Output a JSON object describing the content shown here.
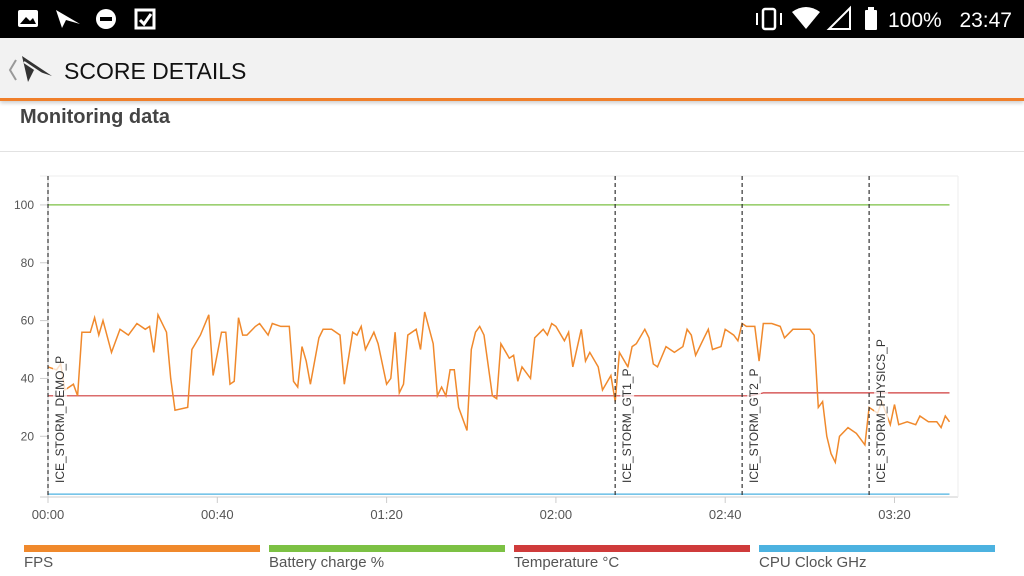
{
  "status_bar": {
    "battery": "100%",
    "time": "23:47"
  },
  "app_bar": {
    "title": "SCORE DETAILS"
  },
  "section": {
    "title": "Monitoring data"
  },
  "chart_data": {
    "type": "line",
    "xlim": [
      0,
      215
    ],
    "xticks": [
      {
        "value": 0,
        "label": "00:00"
      },
      {
        "value": 40,
        "label": "00:40"
      },
      {
        "value": 80,
        "label": "01:20"
      },
      {
        "value": 120,
        "label": "02:00"
      },
      {
        "value": 160,
        "label": "02:40"
      },
      {
        "value": 200,
        "label": "03:20"
      }
    ],
    "ylim": [
      -1,
      110
    ],
    "yticks": [
      20,
      40,
      60,
      80,
      100
    ],
    "markers": [
      {
        "label": "ICE_STORM_DEMO_P",
        "x": 0
      },
      {
        "label": "ICE_STORM_GT1_P",
        "x": 134
      },
      {
        "label": "ICE_STORM_GT2_P",
        "x": 164
      },
      {
        "label": "ICE_STORM_PHYSICS_P",
        "x": 194
      }
    ],
    "series": [
      {
        "name": "FPS",
        "color": "#f0892c",
        "x": [
          0,
          2,
          3,
          4,
          6,
          7,
          8,
          10,
          11,
          12,
          13,
          15,
          17,
          19,
          21,
          23,
          24,
          25,
          26,
          28,
          29,
          30,
          33,
          34,
          36,
          38,
          39,
          41,
          42,
          43,
          44,
          45,
          46,
          47,
          49,
          50,
          52,
          53,
          55,
          57,
          58,
          59,
          60,
          61,
          62,
          64,
          65,
          67,
          69,
          70,
          72,
          73,
          74,
          75,
          77,
          78,
          80,
          81,
          82,
          83,
          84,
          85,
          87,
          88,
          89,
          91,
          92,
          93,
          94,
          95,
          96,
          97,
          99,
          100,
          101,
          102,
          103,
          105,
          106,
          107,
          109,
          110,
          111,
          112,
          114,
          115,
          117,
          118,
          119,
          120,
          122,
          123,
          124,
          126,
          127,
          128,
          130,
          131,
          133,
          134,
          135,
          137,
          138,
          139,
          141,
          142,
          143,
          144,
          146,
          147,
          148,
          150,
          151,
          152,
          153,
          155,
          156,
          157,
          159,
          160,
          162,
          163,
          164,
          165,
          167,
          168,
          169,
          171,
          173,
          174,
          176,
          178,
          180,
          181,
          182,
          183,
          184,
          185,
          186,
          187,
          189,
          191,
          192,
          193,
          194,
          196,
          197,
          199,
          200,
          201,
          203,
          205,
          206,
          208,
          210,
          211,
          212,
          213
        ],
        "values": [
          44,
          43,
          45,
          36,
          38,
          34,
          56,
          56,
          61,
          55,
          60,
          49,
          57,
          55,
          59,
          57,
          58,
          49,
          62,
          56,
          40,
          29,
          30,
          50,
          55,
          62,
          41,
          56,
          56,
          38,
          39,
          61,
          55,
          55,
          58,
          59,
          55,
          59,
          58,
          58,
          39,
          37,
          51,
          46,
          38,
          54,
          57,
          57,
          55,
          38,
          56,
          55,
          58,
          50,
          56,
          52,
          38,
          40,
          56,
          35,
          38,
          55,
          57,
          50,
          63,
          52,
          34,
          37,
          34,
          43,
          43,
          30,
          22,
          50,
          56,
          58,
          55,
          34,
          33,
          52,
          47,
          48,
          39,
          44,
          40,
          54,
          57,
          55,
          59,
          58,
          53,
          56,
          44,
          57,
          46,
          49,
          44,
          36,
          41,
          32,
          49,
          44,
          51,
          52,
          57,
          54,
          45,
          44,
          51,
          50,
          49,
          51,
          57,
          55,
          48,
          54,
          57,
          50,
          51,
          57,
          55,
          53,
          59,
          58,
          58,
          46,
          59,
          59,
          58,
          54,
          57,
          57,
          57,
          55,
          30,
          32,
          20,
          14,
          11,
          20,
          23,
          21,
          19,
          17,
          30,
          28,
          32,
          24,
          31,
          24,
          25,
          24,
          27,
          25,
          25,
          23,
          27,
          25
        ]
      },
      {
        "name": "Battery charge %",
        "color": "#7cc144",
        "x": [
          0,
          213
        ],
        "values": [
          100,
          100
        ]
      },
      {
        "name": "Temperature °C",
        "color": "#cf3b3b",
        "x": [
          0,
          166,
          169,
          213
        ],
        "values": [
          34,
          34,
          35,
          35
        ]
      },
      {
        "name": "CPU Clock GHz",
        "color": "#4cb2e0",
        "x": [
          0,
          213
        ],
        "values": [
          0,
          0
        ]
      }
    ]
  }
}
